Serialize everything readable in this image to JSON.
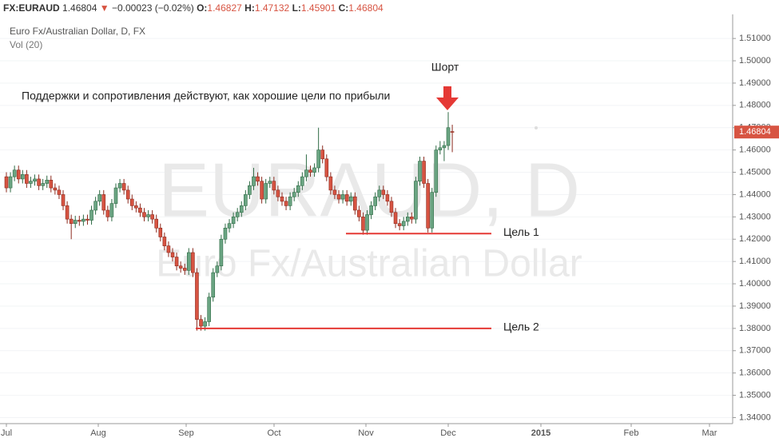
{
  "header": {
    "symbol": "FX:EURAUD",
    "last": "1.46804",
    "arrow": "▼",
    "change": "−0.00023 (−0.02%)",
    "ohlc": [
      {
        "label": "O:",
        "value": "1.46827"
      },
      {
        "label": "H:",
        "value": "1.47132"
      },
      {
        "label": "L:",
        "value": "1.45901"
      },
      {
        "label": "C:",
        "value": "1.46804"
      }
    ]
  },
  "chart_data": {
    "type": "candlestick",
    "legend": "Euro Fx/Australian Dollar, D, FX",
    "indicator": "Vol (20)",
    "watermark": [
      "EURAUD, D",
      "Euro Fx/Australian Dollar"
    ],
    "up_color": "#6ba583",
    "down_color": "#d75442",
    "grid": true,
    "x_labels": [
      "Jul",
      "Aug",
      "Sep",
      "Oct",
      "Nov",
      "Dec",
      "2015",
      "Feb",
      "Mar"
    ],
    "ylim": [
      1.3373,
      1.5208
    ],
    "yticks": [
      {
        "value": 1.34,
        "label": "1.34000"
      },
      {
        "value": 1.35,
        "label": "1.35000"
      },
      {
        "value": 1.36,
        "label": "1.36000"
      },
      {
        "value": 1.37,
        "label": "1.37000"
      },
      {
        "value": 1.38,
        "label": "1.38000"
      },
      {
        "value": 1.39,
        "label": "1.39000"
      },
      {
        "value": 1.4,
        "label": "1.40000"
      },
      {
        "value": 1.41,
        "label": "1.41000"
      },
      {
        "value": 1.42,
        "label": "1.42000"
      },
      {
        "value": 1.43,
        "label": "1.43000"
      },
      {
        "value": 1.44,
        "label": "1.44000"
      },
      {
        "value": 1.45,
        "label": "1.45000"
      },
      {
        "value": 1.46,
        "label": "1.46000"
      },
      {
        "value": 1.47,
        "label": "1.47000"
      },
      {
        "value": 1.48,
        "label": "1.48000"
      },
      {
        "value": 1.49,
        "label": "1.49000"
      },
      {
        "value": 1.5,
        "label": "1.50000"
      },
      {
        "value": 1.51,
        "label": "1.51000"
      }
    ],
    "last_price": {
      "value": 1.46804,
      "label": "1.46804"
    },
    "ohlc": [
      [
        1.448,
        1.45,
        1.441,
        1.443
      ],
      [
        1.443,
        1.45,
        1.441,
        1.448
      ],
      [
        1.448,
        1.453,
        1.446,
        1.451
      ],
      [
        1.451,
        1.453,
        1.445,
        1.447
      ],
      [
        1.447,
        1.451,
        1.445,
        1.449
      ],
      [
        1.449,
        1.451,
        1.443,
        1.445
      ],
      [
        1.445,
        1.448,
        1.443,
        1.446
      ],
      [
        1.446,
        1.449,
        1.444,
        1.447
      ],
      [
        1.447,
        1.449,
        1.442,
        1.444
      ],
      [
        1.444,
        1.447,
        1.442,
        1.445
      ],
      [
        1.445,
        1.4485,
        1.443,
        1.4465
      ],
      [
        1.4465,
        1.4485,
        1.441,
        1.443
      ],
      [
        1.443,
        1.445,
        1.44,
        1.442
      ],
      [
        1.442,
        1.444,
        1.438,
        1.44
      ],
      [
        1.44,
        1.442,
        1.433,
        1.435
      ],
      [
        1.435,
        1.437,
        1.427,
        1.429
      ],
      [
        1.429,
        1.431,
        1.42,
        1.427
      ],
      [
        1.427,
        1.4305,
        1.425,
        1.4285
      ],
      [
        1.4285,
        1.4305,
        1.426,
        1.428
      ],
      [
        1.428,
        1.431,
        1.426,
        1.429
      ],
      [
        1.429,
        1.431,
        1.4265,
        1.4285
      ],
      [
        1.4285,
        1.435,
        1.4265,
        1.433
      ],
      [
        1.433,
        1.439,
        1.431,
        1.437
      ],
      [
        1.437,
        1.442,
        1.435,
        1.44
      ],
      [
        1.44,
        1.442,
        1.431,
        1.433
      ],
      [
        1.433,
        1.435,
        1.428,
        1.43
      ],
      [
        1.43,
        1.438,
        1.428,
        1.436
      ],
      [
        1.436,
        1.445,
        1.434,
        1.443
      ],
      [
        1.443,
        1.447,
        1.441,
        1.445
      ],
      [
        1.445,
        1.447,
        1.44,
        1.442
      ],
      [
        1.442,
        1.444,
        1.436,
        1.438
      ],
      [
        1.438,
        1.44,
        1.433,
        1.435
      ],
      [
        1.435,
        1.437,
        1.432,
        1.434
      ],
      [
        1.434,
        1.436,
        1.43,
        1.432
      ],
      [
        1.432,
        1.434,
        1.428,
        1.43
      ],
      [
        1.43,
        1.433,
        1.428,
        1.431
      ],
      [
        1.431,
        1.433,
        1.427,
        1.429
      ],
      [
        1.429,
        1.431,
        1.423,
        1.425
      ],
      [
        1.425,
        1.427,
        1.419,
        1.421
      ],
      [
        1.421,
        1.423,
        1.415,
        1.417
      ],
      [
        1.417,
        1.419,
        1.412,
        1.414
      ],
      [
        1.414,
        1.416,
        1.41,
        1.412
      ],
      [
        1.412,
        1.414,
        1.406,
        1.408
      ],
      [
        1.408,
        1.41,
        1.405,
        1.407
      ],
      [
        1.407,
        1.409,
        1.404,
        1.406
      ],
      [
        1.406,
        1.416,
        1.404,
        1.414
      ],
      [
        1.414,
        1.416,
        1.403,
        1.405
      ],
      [
        1.405,
        1.407,
        1.379,
        1.384
      ],
      [
        1.384,
        1.386,
        1.379,
        1.381
      ],
      [
        1.381,
        1.385,
        1.379,
        1.383
      ],
      [
        1.383,
        1.396,
        1.381,
        1.394
      ],
      [
        1.394,
        1.407,
        1.392,
        1.405
      ],
      [
        1.405,
        1.41,
        1.403,
        1.408
      ],
      [
        1.408,
        1.422,
        1.406,
        1.42
      ],
      [
        1.42,
        1.427,
        1.418,
        1.425
      ],
      [
        1.425,
        1.429,
        1.423,
        1.427
      ],
      [
        1.427,
        1.432,
        1.425,
        1.43
      ],
      [
        1.43,
        1.434,
        1.428,
        1.432
      ],
      [
        1.432,
        1.437,
        1.43,
        1.435
      ],
      [
        1.435,
        1.442,
        1.433,
        1.44
      ],
      [
        1.44,
        1.446,
        1.438,
        1.444
      ],
      [
        1.444,
        1.452,
        1.442,
        1.448
      ],
      [
        1.448,
        1.45,
        1.444,
        1.446
      ],
      [
        1.446,
        1.448,
        1.436,
        1.438
      ],
      [
        1.438,
        1.447,
        1.436,
        1.445
      ],
      [
        1.445,
        1.448,
        1.443,
        1.446
      ],
      [
        1.446,
        1.448,
        1.44,
        1.442
      ],
      [
        1.442,
        1.444,
        1.437,
        1.439
      ],
      [
        1.439,
        1.441,
        1.435,
        1.437
      ],
      [
        1.437,
        1.439,
        1.433,
        1.435
      ],
      [
        1.435,
        1.441,
        1.433,
        1.439
      ],
      [
        1.439,
        1.443,
        1.437,
        1.441
      ],
      [
        1.441,
        1.446,
        1.439,
        1.444
      ],
      [
        1.444,
        1.45,
        1.442,
        1.448
      ],
      [
        1.448,
        1.458,
        1.446,
        1.451
      ],
      [
        1.451,
        1.453,
        1.448,
        1.45
      ],
      [
        1.45,
        1.454,
        1.448,
        1.452
      ],
      [
        1.452,
        1.47,
        1.45,
        1.46
      ],
      [
        1.46,
        1.462,
        1.454,
        1.456
      ],
      [
        1.456,
        1.458,
        1.446,
        1.448
      ],
      [
        1.448,
        1.45,
        1.44,
        1.442
      ],
      [
        1.442,
        1.444,
        1.438,
        1.44
      ],
      [
        1.44,
        1.442,
        1.436,
        1.438
      ],
      [
        1.438,
        1.442,
        1.436,
        1.44
      ],
      [
        1.44,
        1.442,
        1.435,
        1.437
      ],
      [
        1.437,
        1.441,
        1.435,
        1.439
      ],
      [
        1.439,
        1.441,
        1.431,
        1.433
      ],
      [
        1.433,
        1.435,
        1.428,
        1.43
      ],
      [
        1.43,
        1.432,
        1.422,
        1.424
      ],
      [
        1.424,
        1.433,
        1.422,
        1.431
      ],
      [
        1.431,
        1.437,
        1.429,
        1.435
      ],
      [
        1.435,
        1.441,
        1.433,
        1.439
      ],
      [
        1.439,
        1.444,
        1.437,
        1.442
      ],
      [
        1.442,
        1.444,
        1.438,
        1.44
      ],
      [
        1.44,
        1.442,
        1.435,
        1.437
      ],
      [
        1.437,
        1.439,
        1.43,
        1.432
      ],
      [
        1.432,
        1.434,
        1.425,
        1.427
      ],
      [
        1.427,
        1.429,
        1.424,
        1.426
      ],
      [
        1.426,
        1.43,
        1.424,
        1.428
      ],
      [
        1.428,
        1.432,
        1.426,
        1.43
      ],
      [
        1.43,
        1.432,
        1.427,
        1.429
      ],
      [
        1.429,
        1.448,
        1.427,
        1.446
      ],
      [
        1.446,
        1.457,
        1.444,
        1.455
      ],
      [
        1.455,
        1.457,
        1.443,
        1.445
      ],
      [
        1.445,
        1.447,
        1.423,
        1.425
      ],
      [
        1.425,
        1.443,
        1.423,
        1.441
      ],
      [
        1.441,
        1.462,
        1.439,
        1.46
      ],
      [
        1.46,
        1.464,
        1.458,
        1.461
      ],
      [
        1.461,
        1.464,
        1.455,
        1.462
      ],
      [
        1.462,
        1.477,
        1.46,
        1.47
      ],
      [
        1.46827,
        1.47132,
        1.45901,
        1.46804
      ]
    ],
    "levels": [
      {
        "label": "Цель 1",
        "value": 1.4225,
        "color": "#e53935"
      },
      {
        "label": "Цель 2",
        "value": 1.38,
        "color": "#e53935"
      }
    ],
    "annotations": {
      "note": "Поддержки и сопротивления действуют, как хорошие цели по прибыли",
      "short": "Шорт"
    }
  }
}
